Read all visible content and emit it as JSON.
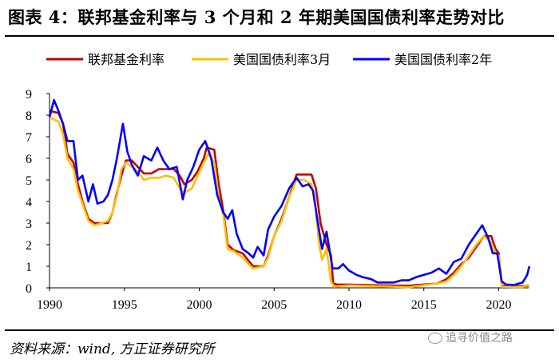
{
  "header": {
    "title": "图表 4：联邦基金利率与 3 个月和 2 年期美国国债利率走势对比"
  },
  "footer": {
    "source": "资料来源：wind, 方正证券研究所",
    "watermark": "追寻价值之路"
  },
  "chart_data": {
    "type": "line",
    "xlim": [
      1990,
      2022
    ],
    "ylim": [
      0,
      9
    ],
    "x_ticks": [
      "1990",
      "1995",
      "2000",
      "2005",
      "2010",
      "2015",
      "2020"
    ],
    "y_ticks": [
      "0",
      "1",
      "2",
      "3",
      "4",
      "5",
      "6",
      "7",
      "8",
      "9"
    ],
    "grid": false,
    "legend_position": "top",
    "series": [
      {
        "name": "联邦基金利率",
        "color": "#c00000",
        "points": [
          [
            1990.0,
            8.2
          ],
          [
            1990.6,
            8.1
          ],
          [
            1990.9,
            7.6
          ],
          [
            1991.2,
            6.2
          ],
          [
            1991.6,
            5.8
          ],
          [
            1991.9,
            4.8
          ],
          [
            1992.2,
            4.0
          ],
          [
            1992.6,
            3.2
          ],
          [
            1993.0,
            3.0
          ],
          [
            1993.5,
            3.0
          ],
          [
            1993.9,
            3.0
          ],
          [
            1994.2,
            3.5
          ],
          [
            1994.5,
            4.4
          ],
          [
            1994.8,
            5.2
          ],
          [
            1995.1,
            5.9
          ],
          [
            1995.5,
            5.9
          ],
          [
            1995.9,
            5.6
          ],
          [
            1996.3,
            5.3
          ],
          [
            1996.8,
            5.3
          ],
          [
            1997.3,
            5.5
          ],
          [
            1997.8,
            5.5
          ],
          [
            1998.3,
            5.5
          ],
          [
            1998.7,
            5.2
          ],
          [
            1999.0,
            4.8
          ],
          [
            1999.5,
            5.0
          ],
          [
            1999.9,
            5.4
          ],
          [
            2000.3,
            6.0
          ],
          [
            2000.5,
            6.5
          ],
          [
            2001.0,
            6.4
          ],
          [
            2001.3,
            4.8
          ],
          [
            2001.6,
            3.6
          ],
          [
            2001.9,
            2.0
          ],
          [
            2002.3,
            1.75
          ],
          [
            2002.9,
            1.6
          ],
          [
            2003.3,
            1.25
          ],
          [
            2003.6,
            1.0
          ],
          [
            2004.3,
            1.0
          ],
          [
            2004.6,
            1.5
          ],
          [
            2005.0,
            2.4
          ],
          [
            2005.5,
            3.2
          ],
          [
            2006.0,
            4.2
          ],
          [
            2006.5,
            5.25
          ],
          [
            2007.0,
            5.25
          ],
          [
            2007.5,
            5.25
          ],
          [
            2007.8,
            4.6
          ],
          [
            2008.1,
            3.0
          ],
          [
            2008.5,
            2.0
          ],
          [
            2008.8,
            1.5
          ],
          [
            2008.95,
            0.2
          ],
          [
            2009.2,
            0.15
          ],
          [
            2010.0,
            0.15
          ],
          [
            2012.0,
            0.12
          ],
          [
            2014.0,
            0.1
          ],
          [
            2015.9,
            0.2
          ],
          [
            2016.5,
            0.4
          ],
          [
            2017.0,
            0.7
          ],
          [
            2017.5,
            1.1
          ],
          [
            2018.0,
            1.4
          ],
          [
            2018.5,
            1.9
          ],
          [
            2019.0,
            2.4
          ],
          [
            2019.5,
            2.4
          ],
          [
            2019.8,
            1.8
          ],
          [
            2020.0,
            1.6
          ],
          [
            2020.2,
            0.1
          ],
          [
            2021.0,
            0.08
          ],
          [
            2021.6,
            0.08
          ],
          [
            2022.0,
            0.1
          ]
        ]
      },
      {
        "name": "美国国债利率3月",
        "color": "#ffc000",
        "points": [
          [
            1990.0,
            7.9
          ],
          [
            1990.6,
            7.7
          ],
          [
            1990.9,
            7.1
          ],
          [
            1991.2,
            6.0
          ],
          [
            1991.6,
            5.5
          ],
          [
            1991.9,
            4.5
          ],
          [
            1992.2,
            3.9
          ],
          [
            1992.6,
            3.1
          ],
          [
            1993.0,
            2.9
          ],
          [
            1993.5,
            3.0
          ],
          [
            1993.9,
            3.1
          ],
          [
            1994.2,
            3.5
          ],
          [
            1994.5,
            4.3
          ],
          [
            1994.8,
            5.5
          ],
          [
            1995.1,
            5.8
          ],
          [
            1995.5,
            5.6
          ],
          [
            1995.9,
            5.4
          ],
          [
            1996.3,
            5.0
          ],
          [
            1996.8,
            5.1
          ],
          [
            1997.3,
            5.1
          ],
          [
            1997.8,
            5.2
          ],
          [
            1998.3,
            5.1
          ],
          [
            1998.7,
            4.6
          ],
          [
            1999.0,
            4.4
          ],
          [
            1999.5,
            4.6
          ],
          [
            1999.9,
            5.2
          ],
          [
            2000.3,
            5.8
          ],
          [
            2000.6,
            6.2
          ],
          [
            2001.0,
            5.8
          ],
          [
            2001.3,
            4.2
          ],
          [
            2001.6,
            3.4
          ],
          [
            2001.9,
            1.8
          ],
          [
            2002.3,
            1.7
          ],
          [
            2002.9,
            1.4
          ],
          [
            2003.3,
            1.1
          ],
          [
            2003.6,
            0.9
          ],
          [
            2004.3,
            1.0
          ],
          [
            2004.6,
            1.4
          ],
          [
            2005.0,
            2.4
          ],
          [
            2005.5,
            3.1
          ],
          [
            2006.0,
            4.2
          ],
          [
            2006.5,
            5.0
          ],
          [
            2007.0,
            5.0
          ],
          [
            2007.5,
            4.8
          ],
          [
            2007.8,
            3.6
          ],
          [
            2008.0,
            2.0
          ],
          [
            2008.2,
            1.3
          ],
          [
            2008.5,
            1.8
          ],
          [
            2008.8,
            0.3
          ],
          [
            2009.0,
            0.05
          ],
          [
            2010.0,
            0.12
          ],
          [
            2012.0,
            0.07
          ],
          [
            2014.0,
            0.03
          ],
          [
            2015.9,
            0.2
          ],
          [
            2016.5,
            0.3
          ],
          [
            2017.0,
            0.6
          ],
          [
            2017.5,
            1.0
          ],
          [
            2018.0,
            1.5
          ],
          [
            2018.5,
            2.0
          ],
          [
            2019.0,
            2.4
          ],
          [
            2019.5,
            2.1
          ],
          [
            2019.8,
            1.6
          ],
          [
            2020.0,
            1.5
          ],
          [
            2020.2,
            0.05
          ],
          [
            2021.0,
            0.04
          ],
          [
            2021.6,
            0.04
          ],
          [
            2022.0,
            0.15
          ]
        ]
      },
      {
        "name": "美国国债利率2年",
        "color": "#0000ff",
        "points": [
          [
            1990.0,
            7.9
          ],
          [
            1990.3,
            8.7
          ],
          [
            1990.6,
            8.2
          ],
          [
            1990.9,
            7.6
          ],
          [
            1991.2,
            6.8
          ],
          [
            1991.6,
            6.8
          ],
          [
            1991.9,
            5.0
          ],
          [
            1992.2,
            5.2
          ],
          [
            1992.6,
            4.0
          ],
          [
            1992.9,
            4.8
          ],
          [
            1993.2,
            3.9
          ],
          [
            1993.6,
            4.0
          ],
          [
            1993.9,
            4.3
          ],
          [
            1994.2,
            5.0
          ],
          [
            1994.5,
            6.0
          ],
          [
            1994.9,
            7.6
          ],
          [
            1995.2,
            6.3
          ],
          [
            1995.5,
            5.7
          ],
          [
            1995.9,
            5.2
          ],
          [
            1996.3,
            6.1
          ],
          [
            1996.8,
            5.9
          ],
          [
            1997.2,
            6.5
          ],
          [
            1997.6,
            5.9
          ],
          [
            1998.0,
            5.5
          ],
          [
            1998.5,
            5.6
          ],
          [
            1998.9,
            4.1
          ],
          [
            1999.2,
            5.0
          ],
          [
            1999.6,
            5.6
          ],
          [
            2000.0,
            6.4
          ],
          [
            2000.4,
            6.8
          ],
          [
            2000.8,
            6.0
          ],
          [
            2001.2,
            4.3
          ],
          [
            2001.6,
            3.5
          ],
          [
            2001.9,
            3.2
          ],
          [
            2002.2,
            3.6
          ],
          [
            2002.5,
            2.5
          ],
          [
            2002.9,
            1.8
          ],
          [
            2003.3,
            1.6
          ],
          [
            2003.6,
            1.4
          ],
          [
            2003.9,
            1.9
          ],
          [
            2004.3,
            1.5
          ],
          [
            2004.6,
            2.7
          ],
          [
            2005.0,
            3.3
          ],
          [
            2005.5,
            3.8
          ],
          [
            2006.0,
            4.6
          ],
          [
            2006.5,
            5.1
          ],
          [
            2006.9,
            4.7
          ],
          [
            2007.3,
            4.8
          ],
          [
            2007.6,
            4.5
          ],
          [
            2007.9,
            3.1
          ],
          [
            2008.2,
            1.8
          ],
          [
            2008.5,
            2.6
          ],
          [
            2008.9,
            0.9
          ],
          [
            2009.3,
            0.9
          ],
          [
            2009.6,
            1.1
          ],
          [
            2010.0,
            0.8
          ],
          [
            2010.5,
            0.6
          ],
          [
            2010.9,
            0.5
          ],
          [
            2011.5,
            0.4
          ],
          [
            2011.9,
            0.25
          ],
          [
            2012.5,
            0.25
          ],
          [
            2013.0,
            0.25
          ],
          [
            2013.5,
            0.35
          ],
          [
            2014.0,
            0.35
          ],
          [
            2014.5,
            0.5
          ],
          [
            2015.0,
            0.6
          ],
          [
            2015.5,
            0.7
          ],
          [
            2016.0,
            0.9
          ],
          [
            2016.5,
            0.65
          ],
          [
            2017.0,
            1.2
          ],
          [
            2017.5,
            1.35
          ],
          [
            2018.0,
            2.0
          ],
          [
            2018.5,
            2.5
          ],
          [
            2018.9,
            2.9
          ],
          [
            2019.3,
            2.3
          ],
          [
            2019.6,
            1.6
          ],
          [
            2019.9,
            1.6
          ],
          [
            2020.2,
            0.3
          ],
          [
            2020.5,
            0.15
          ],
          [
            2021.0,
            0.13
          ],
          [
            2021.6,
            0.25
          ],
          [
            2021.9,
            0.6
          ],
          [
            2022.05,
            1.0
          ]
        ]
      }
    ]
  }
}
